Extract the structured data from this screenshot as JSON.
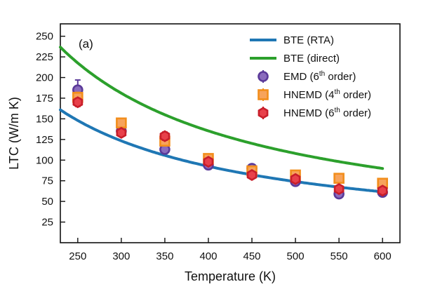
{
  "chart_data": {
    "type": "line",
    "panel_label": "(a)",
    "xlabel": "Temperature (K)",
    "ylabel": "LTC (W/m K)",
    "xlim": [
      230,
      620
    ],
    "ylim": [
      0,
      265
    ],
    "x_ticks": [
      250,
      300,
      350,
      400,
      450,
      500,
      550,
      600
    ],
    "y_ticks": [
      25,
      50,
      75,
      100,
      125,
      150,
      175,
      200,
      225,
      250
    ],
    "legend_position": "top-right",
    "grid": false,
    "curves": [
      {
        "name": "BTE (RTA)",
        "color": "#1f77b4",
        "x_range": [
          230,
          600
        ],
        "coefficient": 37000,
        "exponent": -1
      },
      {
        "name": "BTE (direct)",
        "color": "#2ca02c",
        "x_range": [
          230,
          600
        ],
        "coefficient": 57500,
        "exponent": -1.01
      }
    ],
    "series": [
      {
        "name": "EMD (6th order)",
        "name_parts": [
          "EMD (6",
          "th",
          " order)"
        ],
        "marker": "circle",
        "fill": "#8a6bbd",
        "edge": "#5b3a99",
        "x": [
          250,
          300,
          350,
          400,
          450,
          500,
          550,
          600
        ],
        "y": [
          185,
          135,
          113,
          94,
          90,
          74,
          59,
          61
        ],
        "yerr": [
          12,
          5,
          5,
          5,
          4,
          4,
          3,
          3
        ]
      },
      {
        "name": "HNEMD (4th order)",
        "name_parts": [
          "HNEMD (4",
          "th",
          " order)"
        ],
        "marker": "square",
        "fill": "#f7a35c",
        "edge": "#f28e1c",
        "x": [
          250,
          300,
          350,
          400,
          450,
          500,
          550,
          600
        ],
        "y": [
          176,
          145,
          123,
          102,
          87,
          82,
          78,
          72
        ],
        "yerr": [
          6,
          5,
          5,
          4,
          4,
          4,
          3,
          3
        ]
      },
      {
        "name": "HNEMD (6th order)",
        "name_parts": [
          "HNEMD (6",
          "th",
          " order)"
        ],
        "marker": "hexagon",
        "fill": "#e8404a",
        "edge": "#c81e2a",
        "x": [
          250,
          300,
          350,
          400,
          450,
          500,
          550,
          600
        ],
        "y": [
          170,
          133,
          129,
          98,
          82,
          77,
          65,
          63
        ],
        "yerr": [
          5,
          4,
          5,
          4,
          4,
          3,
          3,
          3
        ]
      }
    ]
  }
}
